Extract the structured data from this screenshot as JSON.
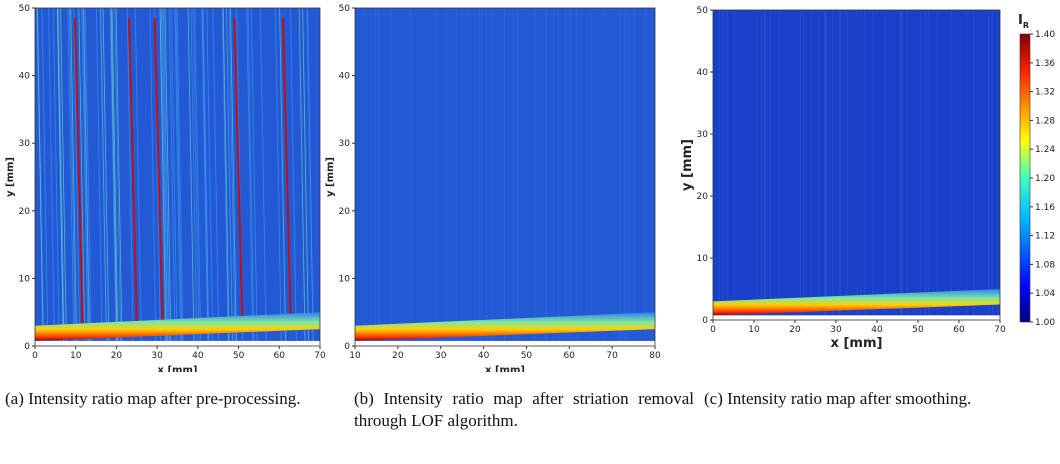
{
  "chart_data": [
    {
      "type": "heatmap",
      "xlabel": "x [mm]",
      "ylabel": "y [mm]",
      "xlim": [
        0,
        70
      ],
      "ylim": [
        0,
        50
      ],
      "xticks": [
        0,
        10,
        20,
        30,
        40,
        50,
        60,
        70
      ],
      "yticks": [
        0,
        10,
        20,
        30,
        40,
        50
      ],
      "caption": "(a) Intensity ratio map after pre-processing."
    },
    {
      "type": "heatmap",
      "xlabel": "x [mm]",
      "ylabel": "y [mm]",
      "xlim": [
        10,
        80
      ],
      "ylim": [
        0,
        50
      ],
      "xticks": [
        10,
        20,
        30,
        40,
        50,
        60,
        70,
        80
      ],
      "yticks": [
        0,
        10,
        20,
        30,
        40,
        50
      ],
      "caption": "(b) Intensity ratio map after striation removal through LOF algorithm."
    },
    {
      "type": "heatmap",
      "xlabel": "x [mm]",
      "ylabel": "y [mm]",
      "xlim": [
        0,
        70
      ],
      "ylim": [
        0,
        50
      ],
      "xticks": [
        0,
        10,
        20,
        30,
        40,
        50,
        60,
        70
      ],
      "yticks": [
        0,
        10,
        20,
        30,
        40,
        50
      ],
      "caption": "(c) Intensity ratio map after smoothing.",
      "colorbar_label": "I",
      "colorbar_label_sub": "R",
      "clim": [
        1.0,
        1.4
      ],
      "colorbar_ticks": [
        {
          "value": 1.0,
          "label": "1.00"
        },
        {
          "value": 1.04,
          "label": "1.04"
        },
        {
          "value": 1.08,
          "label": "1.08"
        },
        {
          "value": 1.12,
          "label": "1.12"
        },
        {
          "value": 1.16,
          "label": "1.16"
        },
        {
          "value": 1.2,
          "label": "1.20"
        },
        {
          "value": 1.24,
          "label": "1.24"
        },
        {
          "value": 1.28,
          "label": "1.28"
        },
        {
          "value": 1.32,
          "label": "1.32"
        },
        {
          "value": 1.36,
          "label": "1.36"
        },
        {
          "value": 1.4,
          "label": "1.40"
        }
      ]
    }
  ]
}
